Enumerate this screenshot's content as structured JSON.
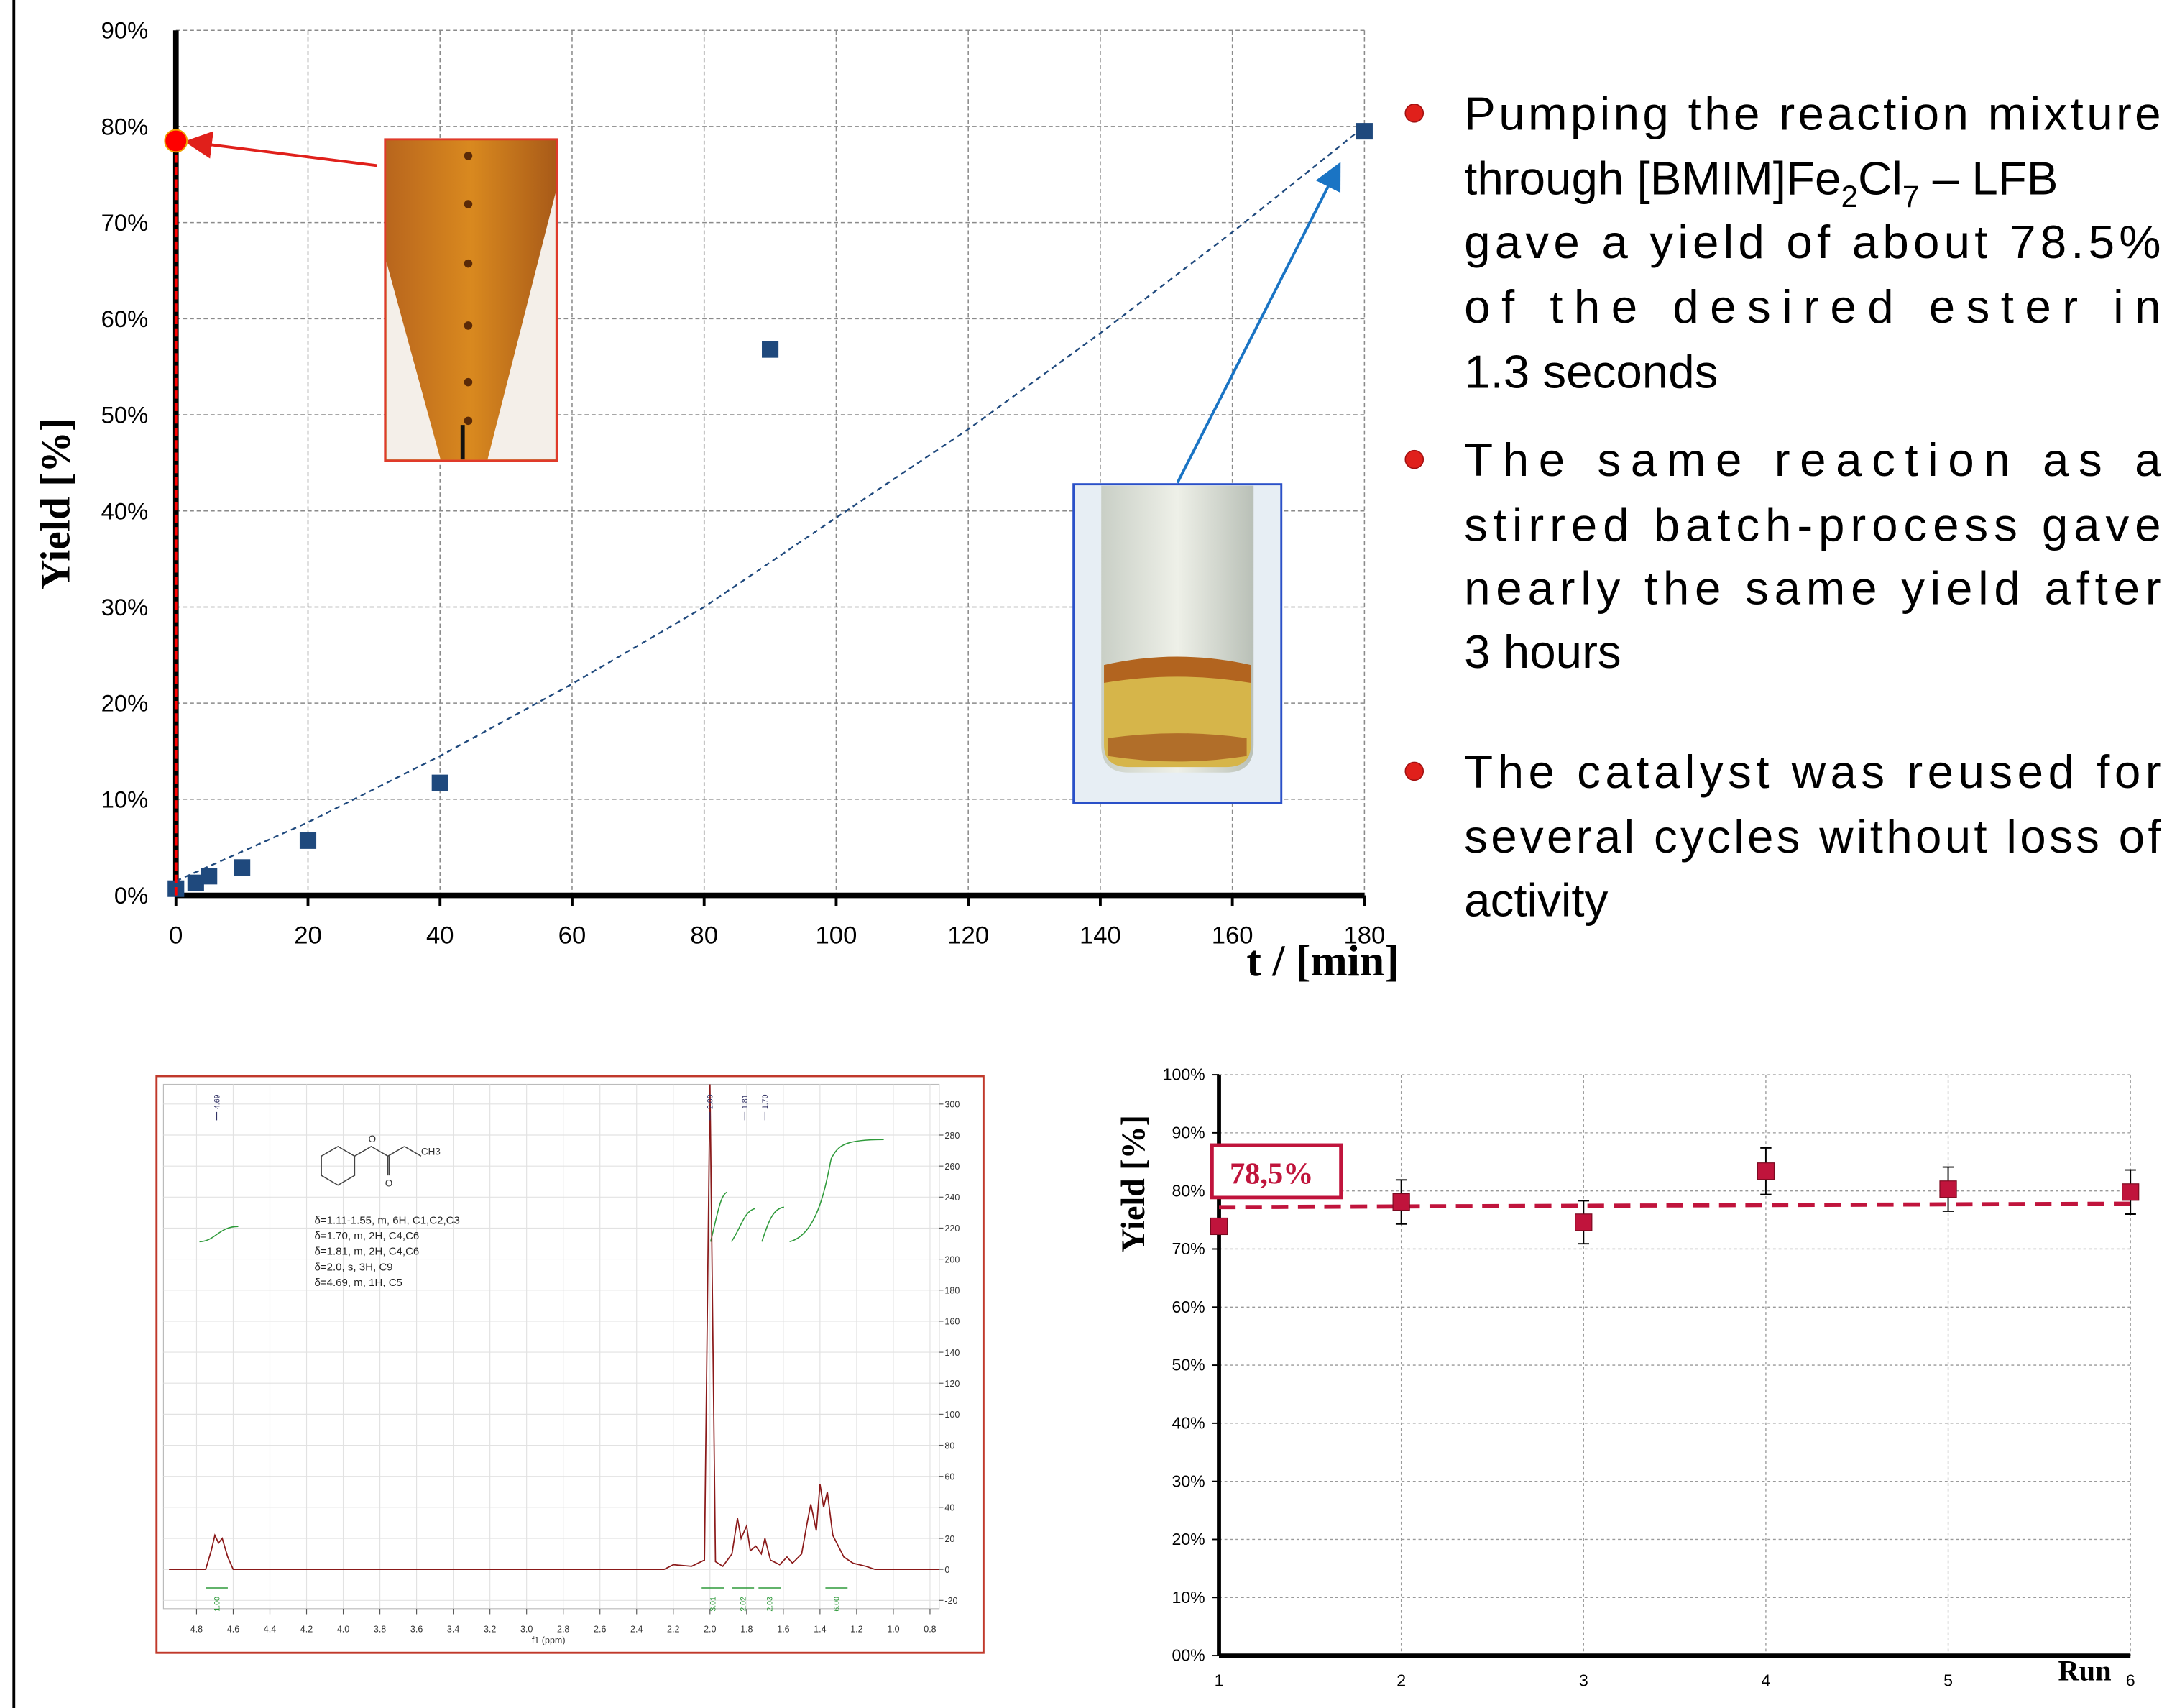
{
  "chart_data": [
    {
      "type": "scatter",
      "y_label": "Yield [%]",
      "x_label": "t / [min]",
      "xlim": [
        0,
        180
      ],
      "ylim": [
        0,
        90
      ],
      "xticks": [
        0,
        20,
        40,
        60,
        80,
        100,
        120,
        140,
        160,
        180
      ],
      "yticks": [
        {
          "value": 0,
          "label": "0%"
        },
        {
          "value": 10,
          "label": "10%"
        },
        {
          "value": 20,
          "label": "20%"
        },
        {
          "value": 30,
          "label": "30%"
        },
        {
          "value": 40,
          "label": "40%"
        },
        {
          "value": 50,
          "label": "50%"
        },
        {
          "value": 60,
          "label": "60%"
        },
        {
          "value": 70,
          "label": "70%"
        },
        {
          "value": 80,
          "label": "80%"
        },
        {
          "value": 90,
          "label": "90%"
        }
      ],
      "grid": true,
      "series": [
        {
          "color": "#1f497d",
          "marker": "square",
          "x": [
            0,
            3,
            5,
            10,
            20,
            40,
            90,
            180
          ],
          "values": [
            0.7,
            1.3,
            2.0,
            2.9,
            5.7,
            11.7,
            56.8,
            79.5
          ]
        },
        {
          "color": "#ff0000",
          "marker": "circle",
          "x": [
            0
          ],
          "values": [
            78.5
          ]
        }
      ],
      "trendline": {
        "color": "#1f497d",
        "x": [
          0,
          20,
          40,
          60,
          80,
          100,
          120,
          140,
          160,
          180
        ],
        "values": [
          1.5,
          7.6,
          14.5,
          22,
          30,
          39.3,
          48.5,
          58.5,
          69,
          80
        ]
      }
    },
    {
      "type": "line",
      "x_label": "f1 (ppm)",
      "xlim": [
        4.92,
        0.75
      ],
      "ylim": [
        -24,
        318
      ],
      "xticks": [
        4.8,
        4.6,
        4.4,
        4.2,
        {
          "value": 4,
          "label": "4.0"
        },
        3.8,
        3.6,
        3.4,
        3.2,
        {
          "value": 3,
          "label": "3.0"
        },
        2.8,
        2.6,
        2.4,
        2.2,
        {
          "value": 2,
          "label": "2.0"
        },
        1.8,
        1.6,
        1.4,
        1.2,
        {
          "value": 1,
          "label": "1.0"
        },
        0.8
      ],
      "yticks": [
        -20,
        0,
        20,
        40,
        60,
        80,
        100,
        120,
        140,
        160,
        180,
        200,
        220,
        240,
        260,
        280,
        300
      ],
      "grid": true,
      "color": "#8b1a1a",
      "x": [
        4.95,
        4.75,
        4.72,
        4.7,
        4.68,
        4.66,
        4.63,
        4.6,
        2.25,
        2.2,
        2.1,
        2.03,
        2.0,
        1.97,
        1.93,
        1.88,
        1.85,
        1.83,
        1.8,
        1.78,
        1.75,
        1.72,
        1.7,
        1.67,
        1.62,
        1.58,
        1.55,
        1.5,
        1.47,
        1.45,
        1.42,
        1.4,
        1.38,
        1.36,
        1.33,
        1.3,
        1.27,
        1.22,
        1.15,
        1.1,
        1.0,
        0.75
      ],
      "values": [
        0,
        0,
        12,
        22,
        17,
        20,
        8,
        0,
        0,
        3,
        2,
        6,
        313,
        5,
        2,
        10,
        33,
        20,
        28,
        12,
        15,
        10,
        20,
        6,
        3,
        8,
        4,
        10,
        30,
        42,
        25,
        55,
        40,
        50,
        22,
        15,
        8,
        4,
        2,
        0,
        0,
        0
      ],
      "peaks": [
        4.69,
        2.0,
        1.81,
        1.7
      ],
      "peak_labels": [
        "4.69",
        "2.00",
        "1.81",
        "1.70"
      ],
      "integrals": {
        "x": [
          4.69,
          1.985,
          1.82,
          1.675,
          1.31
        ],
        "values": [
          1.0,
          3.01,
          2.02,
          2.03,
          6.0
        ],
        "value_labels": [
          "1.00",
          "3.01",
          "2.02",
          "2.03",
          "6.00"
        ]
      },
      "annotations": [
        "δ=1.11-1.55, m, 6H, C1,C2,C3",
        "δ=1.70, m, 2H, C4,C6",
        "δ=1.81, m, 2H, C4,C6",
        "δ=2.0, s, 3H, C9",
        "δ=4.69, m, 1H, C5"
      ],
      "structure_labels": [
        "O",
        "O",
        "CH3"
      ]
    },
    {
      "type": "scatter",
      "y_label": "Yield [%]",
      "x_label": "Run",
      "xlim": [
        1,
        6
      ],
      "ylim": [
        0,
        100
      ],
      "xticks": [
        1,
        2,
        3,
        4,
        5,
        6
      ],
      "yticks": [
        {
          "value": 0,
          "label": "00%"
        },
        {
          "value": 10,
          "label": "10%"
        },
        {
          "value": 20,
          "label": "20%"
        },
        {
          "value": 30,
          "label": "30%"
        },
        {
          "value": 40,
          "label": "40%"
        },
        {
          "value": 50,
          "label": "50%"
        },
        {
          "value": 60,
          "label": "60%"
        },
        {
          "value": 70,
          "label": "70%"
        },
        {
          "value": 80,
          "label": "80%"
        },
        {
          "value": 90,
          "label": "90%"
        },
        {
          "value": 100,
          "label": "100%"
        }
      ],
      "grid": true,
      "series": [
        {
          "color": "#c0143c",
          "marker": "square",
          "x": [
            1,
            2,
            3,
            4,
            5,
            6
          ],
          "values": [
            73.9,
            78.1,
            74.6,
            83.4,
            80.3,
            79.8
          ],
          "errors": [
            0,
            3.8,
            3.7,
            4.0,
            3.8,
            3.8
          ]
        }
      ],
      "reference_line": {
        "color": "#c0143c",
        "label": "78,5%",
        "x": [
          1,
          6
        ],
        "values": [
          77.2,
          77.8
        ]
      }
    }
  ],
  "bullets": [
    {
      "lines": [
        "Pumping the reaction mixture",
        [
          "through [BMIM]Fe",
          "2",
          "Cl",
          "7",
          " – LFB"
        ],
        "gave a yield of about 78.5%",
        "of the desired ester in",
        "1.3 seconds"
      ]
    },
    {
      "lines": [
        "The same reaction as a",
        "stirred batch-process gave",
        "nearly the same yield after",
        "3 hours"
      ]
    },
    {
      "lines": [
        "The catalyst was reused for",
        "several cycles without loss of",
        "activity"
      ]
    }
  ]
}
